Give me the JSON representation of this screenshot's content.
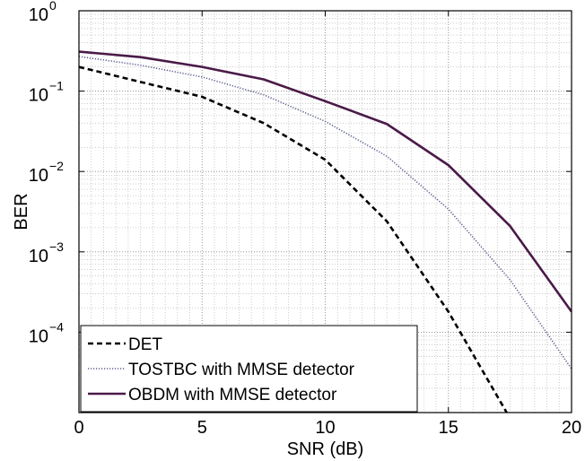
{
  "chart_data": {
    "type": "line",
    "title": "",
    "xlabel": "SNR (dB)",
    "ylabel": "BER",
    "xlim": [
      0,
      20
    ],
    "ylim": [
      1e-05,
      1
    ],
    "yscale": "log",
    "grid": true,
    "legend_position": "bottom-left",
    "x_ticks": [
      {
        "value": 0,
        "label": "0"
      },
      {
        "value": 5,
        "label": "5"
      },
      {
        "value": 10,
        "label": "10"
      },
      {
        "value": 15,
        "label": "15"
      },
      {
        "value": 20,
        "label": "20"
      }
    ],
    "y_ticks": [
      {
        "value": 1,
        "base": "10",
        "exp": "0"
      },
      {
        "value": 0.1,
        "base": "10",
        "exp": "−1"
      },
      {
        "value": 0.01,
        "base": "10",
        "exp": "−2"
      },
      {
        "value": 0.001,
        "base": "10",
        "exp": "−3"
      },
      {
        "value": 0.0001,
        "base": "10",
        "exp": "−4"
      }
    ],
    "series": [
      {
        "name": "DET",
        "style": "dashed",
        "color": "#000000",
        "x": [
          0,
          2.5,
          5,
          7.5,
          10,
          12.5,
          15,
          17.5
        ],
        "y": [
          0.2,
          0.13,
          0.085,
          0.04,
          0.014,
          0.0024,
          0.00018,
          8.5e-06
        ]
      },
      {
        "name": "TOSTBC with MMSE detector",
        "style": "dotted",
        "color": "#5a5f8f",
        "x": [
          0,
          2.5,
          5,
          7.5,
          10,
          12.5,
          15,
          17.5,
          20
        ],
        "y": [
          0.27,
          0.21,
          0.15,
          0.09,
          0.042,
          0.0155,
          0.0034,
          0.00045,
          3.5e-05
        ]
      },
      {
        "name": "OBDM with MMSE detector",
        "style": "solid",
        "color": "#4a1a48",
        "x": [
          0,
          2.5,
          5,
          7.5,
          10,
          12.5,
          15,
          17.5,
          20
        ],
        "y": [
          0.31,
          0.265,
          0.2,
          0.14,
          0.075,
          0.039,
          0.012,
          0.0021,
          0.00018
        ]
      }
    ]
  }
}
